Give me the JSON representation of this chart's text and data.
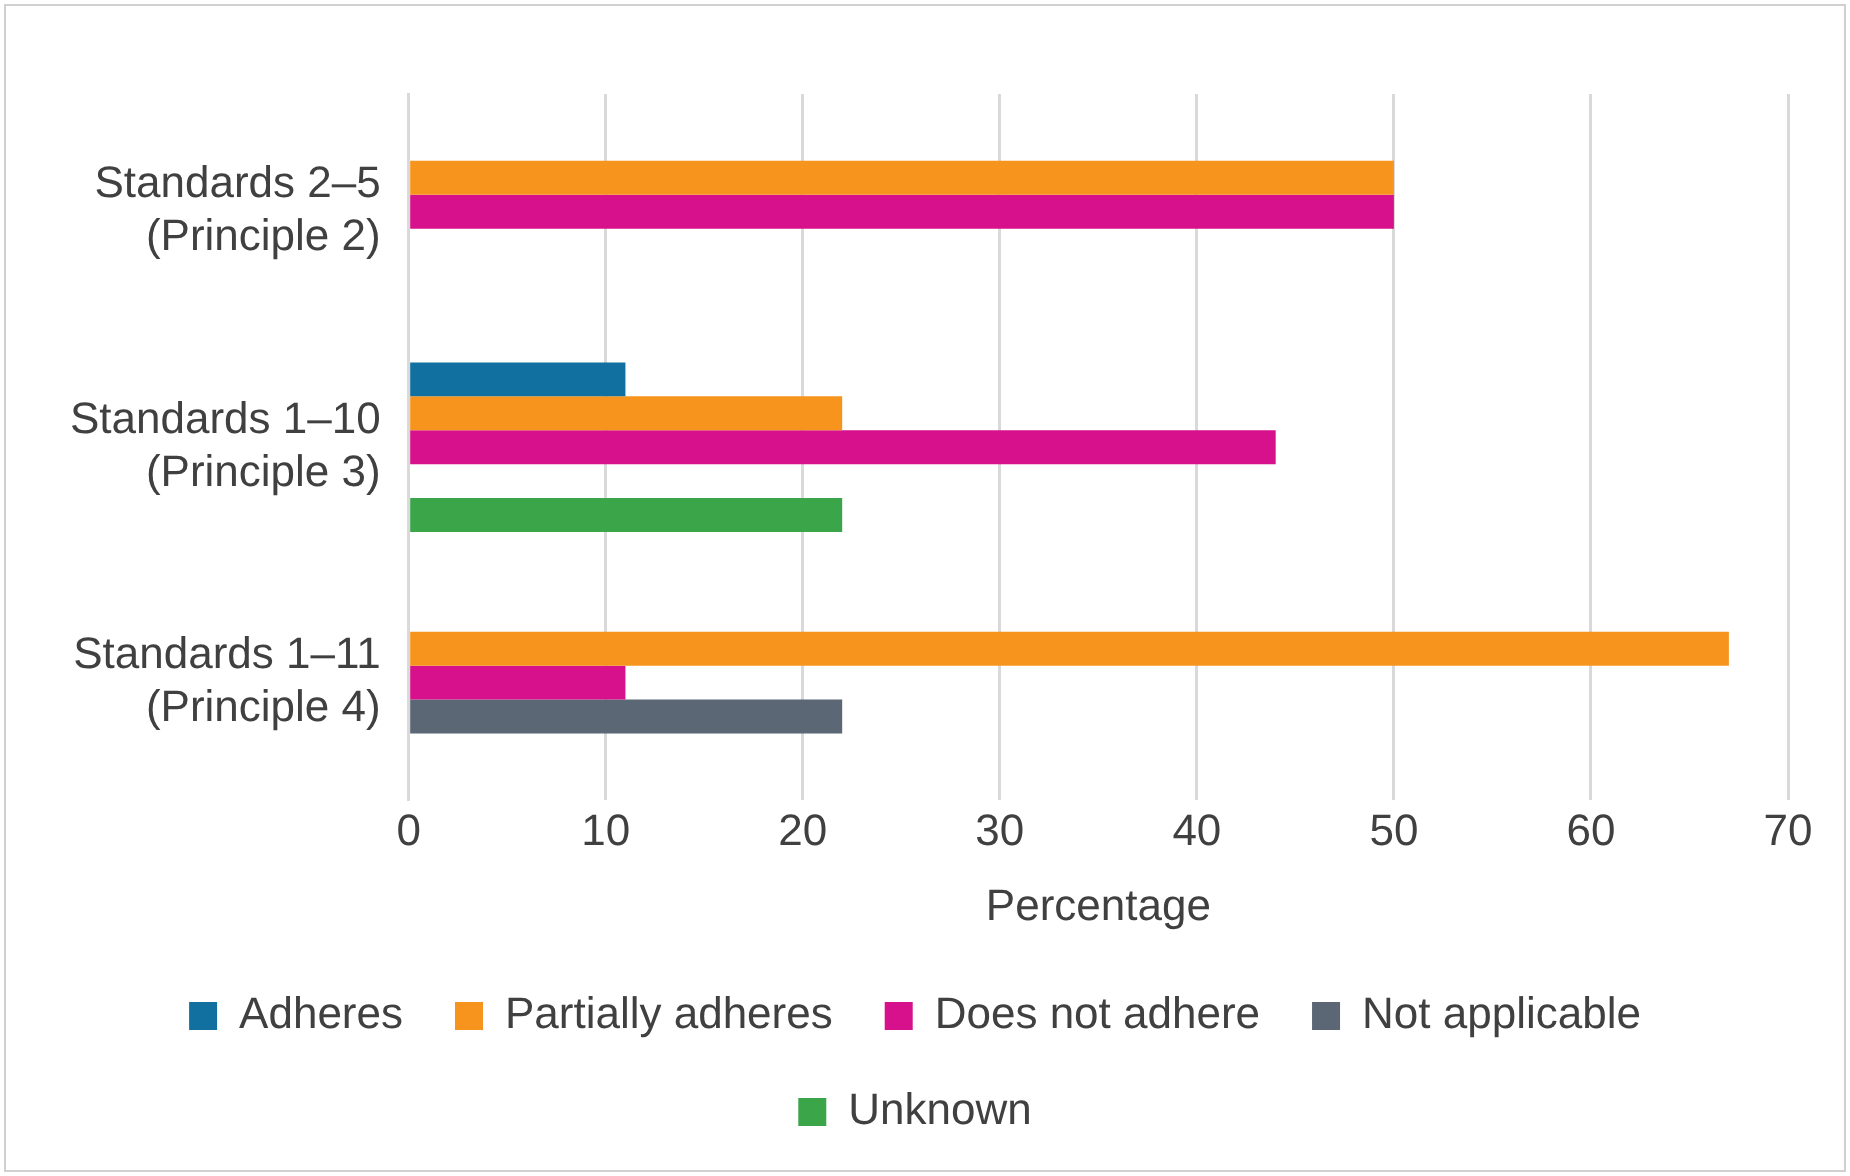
{
  "chart_data": {
    "type": "bar",
    "orientation": "horizontal",
    "xlabel": "Percentage",
    "categories": [
      "Standards 2–5\n(Principle 2)",
      "Standards 1–10\n(Principle 3)",
      "Standards 1–11\n(Principle 4)"
    ],
    "series": [
      {
        "name": "Adheres",
        "color": "#11709f",
        "values": [
          null,
          11,
          null
        ]
      },
      {
        "name": "Partially adheres",
        "color": "#f7941d",
        "values": [
          50,
          22,
          67
        ]
      },
      {
        "name": "Does not adhere",
        "color": "#d6118b",
        "values": [
          50,
          44,
          11
        ]
      },
      {
        "name": "Not applicable",
        "color": "#5b6774",
        "values": [
          null,
          null,
          22
        ]
      },
      {
        "name": "Unknown",
        "color": "#3ba54a",
        "values": [
          null,
          22,
          null
        ]
      }
    ],
    "xlim": [
      0,
      70
    ],
    "xticks": [
      0,
      10,
      20,
      30,
      40,
      50,
      60,
      70
    ],
    "grid": "x",
    "legend": "bottom"
  }
}
